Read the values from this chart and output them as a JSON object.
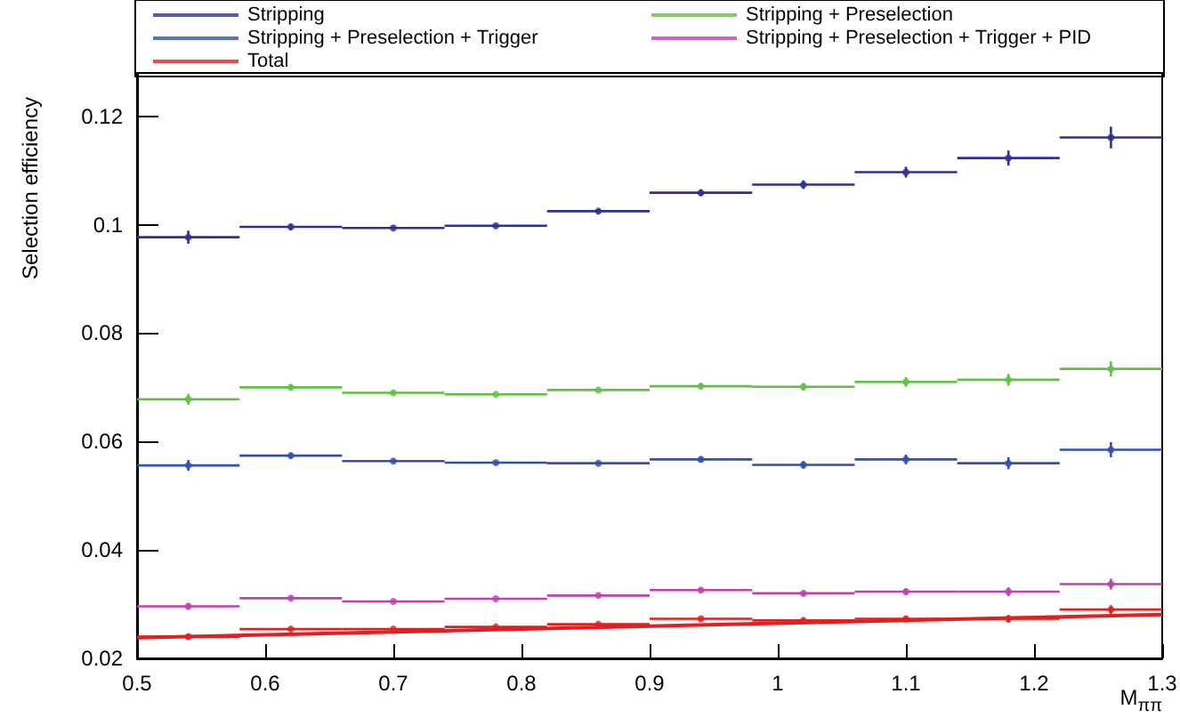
{
  "chart_data": {
    "type": "scatter",
    "xlabel": "M$_{ππ}$",
    "ylabel": "Selection efficiency",
    "legend": "top",
    "marker": "circle",
    "grid": false,
    "x": [
      0.54,
      0.62,
      0.7,
      0.78,
      0.86,
      0.94,
      1.02,
      1.1,
      1.18,
      1.26
    ],
    "xlim": [
      0.5,
      1.3
    ],
    "xticks": [
      0.5,
      0.6,
      0.7,
      0.8,
      0.9,
      1,
      1.1,
      1.2,
      1.3
    ],
    "ylim": [
      0.02,
      0.128
    ],
    "yticks": [
      0.02,
      0.04,
      0.06,
      0.08,
      0.1,
      0.12
    ],
    "series": [
      {
        "name": "Stripping",
        "color": "#303090",
        "values": [
          0.0977,
          0.0996,
          0.0994,
          0.0998,
          0.1025,
          0.1059,
          0.1074,
          0.1097,
          0.1123,
          0.1161
        ],
        "errors": [
          0.0012,
          0.0006,
          0.0003,
          0.0003,
          0.0004,
          0.0006,
          0.0008,
          0.001,
          0.0014,
          0.002
        ],
        "xerrors": [
          0.04,
          0.04,
          0.04,
          0.04,
          0.04,
          0.04,
          0.04,
          0.04,
          0.04,
          0.04
        ]
      },
      {
        "name": "Stripping + Preselection",
        "color": "#60c040",
        "values": [
          0.0678,
          0.07,
          0.069,
          0.0687,
          0.0695,
          0.0702,
          0.0701,
          0.071,
          0.0714,
          0.0734
        ],
        "errors": [
          0.001,
          0.0005,
          0.0003,
          0.0003,
          0.0003,
          0.0005,
          0.0007,
          0.0009,
          0.0011,
          0.0014
        ],
        "xerrors": [
          0.04,
          0.04,
          0.04,
          0.04,
          0.04,
          0.04,
          0.04,
          0.04,
          0.04,
          0.04
        ]
      },
      {
        "name": "Stripping + Preselection + Trigger",
        "color": "#3050b0",
        "values": [
          0.0556,
          0.0574,
          0.0564,
          0.0561,
          0.056,
          0.0567,
          0.0557,
          0.0567,
          0.056,
          0.0585
        ],
        "errors": [
          0.001,
          0.0005,
          0.0003,
          0.0003,
          0.0003,
          0.0005,
          0.0007,
          0.0009,
          0.0011,
          0.0014
        ],
        "xerrors": [
          0.04,
          0.04,
          0.04,
          0.04,
          0.04,
          0.04,
          0.04,
          0.04,
          0.04,
          0.04
        ]
      },
      {
        "name": "Stripping + Preselection + Trigger + PID",
        "color": "#c040b0",
        "values": [
          0.0296,
          0.0311,
          0.0305,
          0.031,
          0.0316,
          0.0326,
          0.032,
          0.0323,
          0.0323,
          0.0337
        ],
        "errors": [
          0.0006,
          0.0004,
          0.0002,
          0.0002,
          0.0002,
          0.0004,
          0.0005,
          0.0006,
          0.0008,
          0.001
        ],
        "xerrors": [
          0.04,
          0.04,
          0.04,
          0.04,
          0.04,
          0.04,
          0.04,
          0.04,
          0.04,
          0.04
        ]
      },
      {
        "name": "Total",
        "color": "#e02020",
        "values": [
          0.024,
          0.0254,
          0.0254,
          0.0258,
          0.0263,
          0.0273,
          0.027,
          0.0273,
          0.0273,
          0.029
        ],
        "errors": [
          0.0005,
          0.0003,
          0.0002,
          0.0002,
          0.0002,
          0.0003,
          0.0004,
          0.0005,
          0.0007,
          0.0008
        ],
        "xerrors": [
          0.04,
          0.04,
          0.04,
          0.04,
          0.04,
          0.04,
          0.04,
          0.04,
          0.04,
          0.04
        ]
      },
      {
        "type": "line",
        "marker": "none",
        "color": "#e02020",
        "x": [
          0.5,
          1.3
        ],
        "values": [
          0.0238,
          0.0281
        ]
      }
    ]
  }
}
